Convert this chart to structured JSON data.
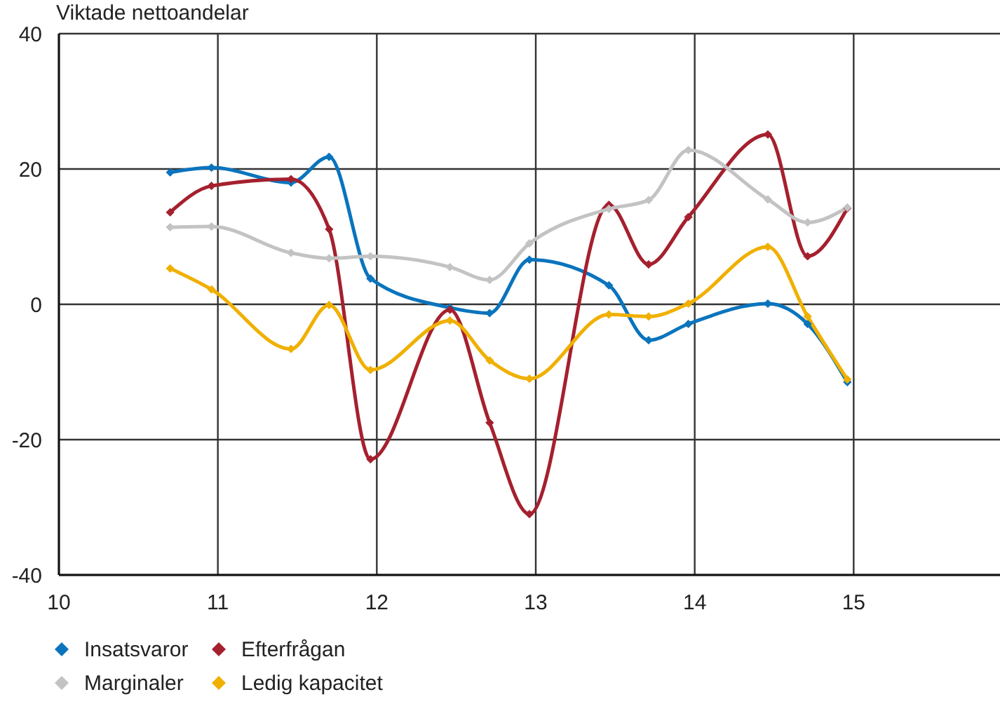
{
  "chart_data": {
    "type": "line",
    "title": "Viktade nettoandelar",
    "x": [
      10.7,
      10.96,
      11.46,
      11.7,
      11.96,
      12.46,
      12.71,
      12.96,
      13.46,
      13.71,
      13.96,
      14.46,
      14.71,
      14.96
    ],
    "series": [
      {
        "name": "Insatsvaror",
        "color": "#0a74bd",
        "values": [
          19.5,
          20.2,
          18.0,
          21.8,
          3.8,
          -0.5,
          -1.3,
          6.6,
          2.8,
          -5.3,
          -2.9,
          0.1,
          -2.9,
          -11.5
        ]
      },
      {
        "name": "Efterfrågan",
        "color": "#a5202e",
        "values": [
          13.6,
          17.5,
          18.5,
          11.1,
          -22.9,
          -0.8,
          -17.5,
          -31.0,
          14.7,
          5.9,
          12.9,
          25.1,
          7.1,
          14.2
        ]
      },
      {
        "name": "Marginaler",
        "color": "#c3c3c3",
        "values": [
          11.4,
          11.5,
          7.6,
          6.8,
          7.1,
          5.5,
          3.6,
          9.0,
          14.1,
          15.4,
          22.8,
          15.5,
          12.1,
          14.3
        ]
      },
      {
        "name": "Ledig kapacitet",
        "color": "#f0b000",
        "values": [
          5.3,
          2.2,
          -6.6,
          -0.1,
          -9.7,
          -2.4,
          -8.3,
          -11.0,
          -1.5,
          -1.8,
          0.1,
          8.5,
          -1.8,
          -11.1
        ]
      }
    ],
    "xlim": [
      10,
      16
    ],
    "xticks": [
      10,
      11,
      12,
      13,
      14,
      15
    ],
    "ylim": [
      -40,
      40
    ],
    "yticks": [
      -40,
      -20,
      0,
      20,
      40
    ],
    "grid": true,
    "legend": "bottom left",
    "marker": "diamond"
  }
}
